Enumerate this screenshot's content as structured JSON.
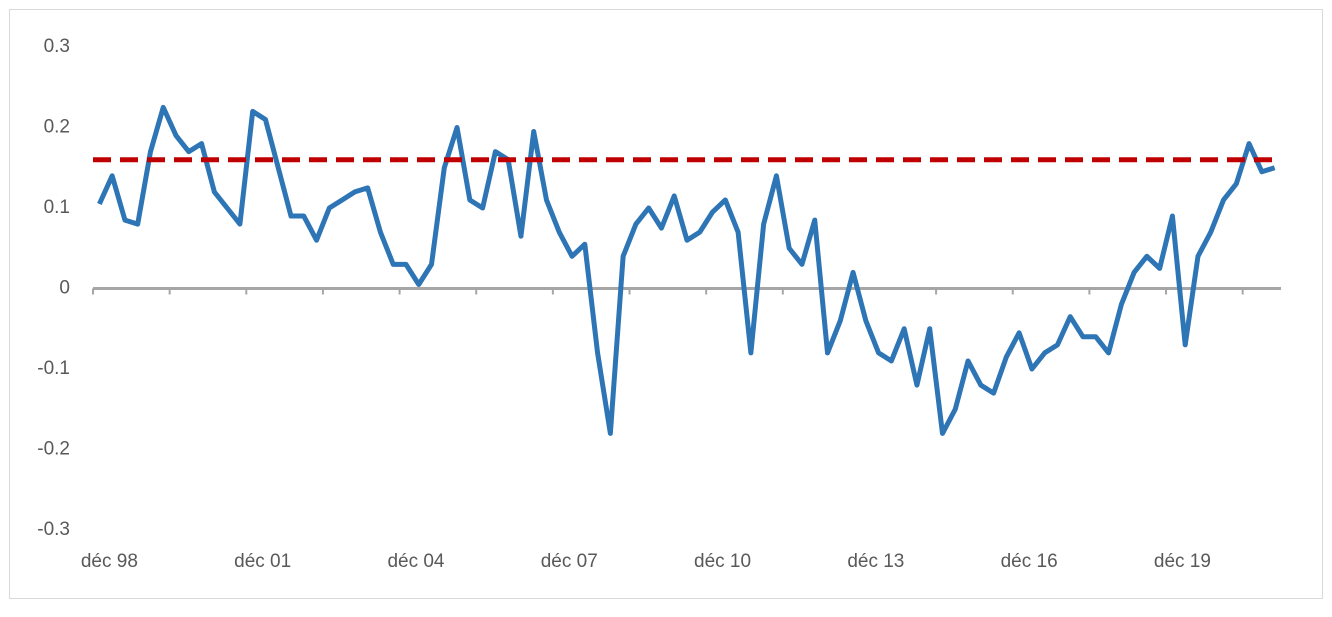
{
  "chart_data": {
    "type": "line",
    "categories": [
      "déc 98",
      null,
      null,
      null,
      null,
      null,
      null,
      null,
      null,
      null,
      null,
      null,
      "déc 01",
      null,
      null,
      null,
      null,
      null,
      null,
      null,
      null,
      null,
      null,
      null,
      "déc 04",
      null,
      null,
      null,
      null,
      null,
      null,
      null,
      null,
      null,
      null,
      null,
      "déc 07",
      null,
      null,
      null,
      null,
      null,
      null,
      null,
      null,
      null,
      null,
      null,
      "déc 10",
      null,
      null,
      null,
      null,
      null,
      null,
      null,
      null,
      null,
      null,
      null,
      "déc 13",
      null,
      null,
      null,
      null,
      null,
      null,
      null,
      null,
      null,
      null,
      null,
      "déc 16",
      null,
      null,
      null,
      null,
      null,
      null,
      null,
      null,
      null,
      null,
      null,
      "déc 19",
      null,
      null,
      null,
      null,
      null,
      null,
      null,
      null
    ],
    "values": [
      0.105,
      0.14,
      0.085,
      0.08,
      0.17,
      0.225,
      0.19,
      0.17,
      0.18,
      0.12,
      0.1,
      0.08,
      0.22,
      0.21,
      0.15,
      0.09,
      0.09,
      0.06,
      0.1,
      0.11,
      0.12,
      0.125,
      0.07,
      0.03,
      0.03,
      0.005,
      0.03,
      0.15,
      0.2,
      0.11,
      0.1,
      0.17,
      0.16,
      0.065,
      0.195,
      0.11,
      0.07,
      0.04,
      0.055,
      -0.08,
      -0.18,
      0.04,
      0.08,
      0.1,
      0.075,
      0.115,
      0.06,
      0.07,
      0.095,
      0.11,
      0.07,
      -0.08,
      0.08,
      0.14,
      0.05,
      0.03,
      0.085,
      -0.08,
      -0.04,
      0.02,
      -0.04,
      -0.08,
      -0.09,
      -0.05,
      -0.12,
      -0.05,
      -0.18,
      -0.15,
      -0.09,
      -0.12,
      -0.13,
      -0.085,
      -0.055,
      -0.1,
      -0.08,
      -0.07,
      -0.035,
      -0.06,
      -0.06,
      -0.08,
      -0.02,
      0.02,
      0.04,
      0.025,
      0.09,
      -0.07,
      0.04,
      0.07,
      0.11,
      0.13,
      0.18,
      0.145,
      0.15
    ],
    "color": "#2e75b6",
    "reference_line": {
      "value": 0.16,
      "color": "#c00000"
    },
    "ylim": [
      -0.3,
      0.3
    ],
    "yticks": [
      -0.3,
      -0.2,
      -0.1,
      0,
      0.1,
      0.2,
      0.3
    ]
  }
}
